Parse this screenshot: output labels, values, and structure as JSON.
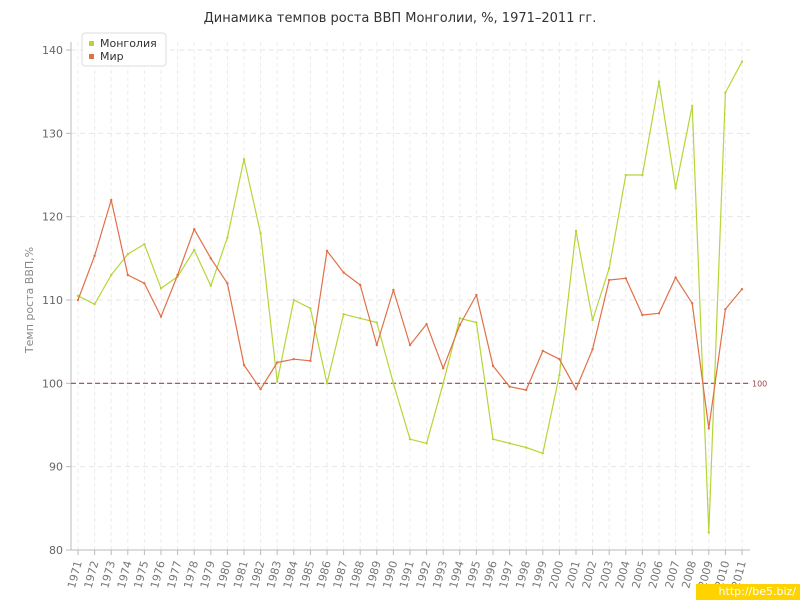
{
  "chart_data": {
    "type": "line",
    "title": "Динамика темпов роста ВВП Монголии, %, 1971–2011 гг.",
    "xlabel": "",
    "ylabel": "Темп роста ВВП,%",
    "ylim": [
      80,
      140
    ],
    "yticks": [
      80,
      90,
      100,
      110,
      120,
      130,
      140
    ],
    "grid": true,
    "legend": "top-left",
    "reference_line": {
      "value": 100,
      "label": "100",
      "color": "#a04050"
    },
    "x": [
      "1971",
      "1972",
      "1973",
      "1974",
      "1975",
      "1976",
      "1977",
      "1978",
      "1979",
      "1980",
      "1981",
      "1982",
      "1983",
      "1984",
      "1985",
      "1986",
      "1987",
      "1988",
      "1989",
      "1990",
      "1991",
      "1992",
      "1993",
      "1994",
      "1995",
      "1996",
      "1997",
      "1998",
      "1999",
      "2000",
      "2001",
      "2002",
      "2003",
      "2004",
      "2005",
      "2006",
      "2007",
      "2008",
      "2009",
      "2010",
      "2011"
    ],
    "series": [
      {
        "name": "Монголия",
        "color": "#b5d639",
        "values": [
          110.5,
          109.5,
          113,
          115.5,
          116.7,
          111.4,
          112.8,
          116,
          111.7,
          117.5,
          126.9,
          118,
          100.2,
          110,
          109,
          100,
          108.3,
          107.8,
          107.3,
          100,
          93.3,
          92.8,
          100,
          107.8,
          107.3,
          93.3,
          92.8,
          92.3,
          91.6,
          101,
          118.3,
          107.6,
          113.8,
          125,
          125,
          136.2,
          123.4,
          133.3,
          82.1,
          134.9,
          138.6
        ]
      },
      {
        "name": "Мир",
        "color": "#e07048",
        "values": [
          110,
          115.3,
          122,
          113,
          112,
          108,
          113,
          118.5,
          115,
          112,
          102.2,
          99.3,
          102.5,
          102.9,
          102.7,
          115.9,
          113.3,
          111.8,
          104.6,
          111.2,
          104.6,
          107.1,
          101.8,
          107,
          110.6,
          102.1,
          99.6,
          99.2,
          103.9,
          102.9,
          99.3,
          104.1,
          112.4,
          112.6,
          108.2,
          108.4,
          112.7,
          109.6,
          94.6,
          108.9,
          111.3
        ]
      }
    ]
  },
  "watermark": "http://be5.biz/"
}
